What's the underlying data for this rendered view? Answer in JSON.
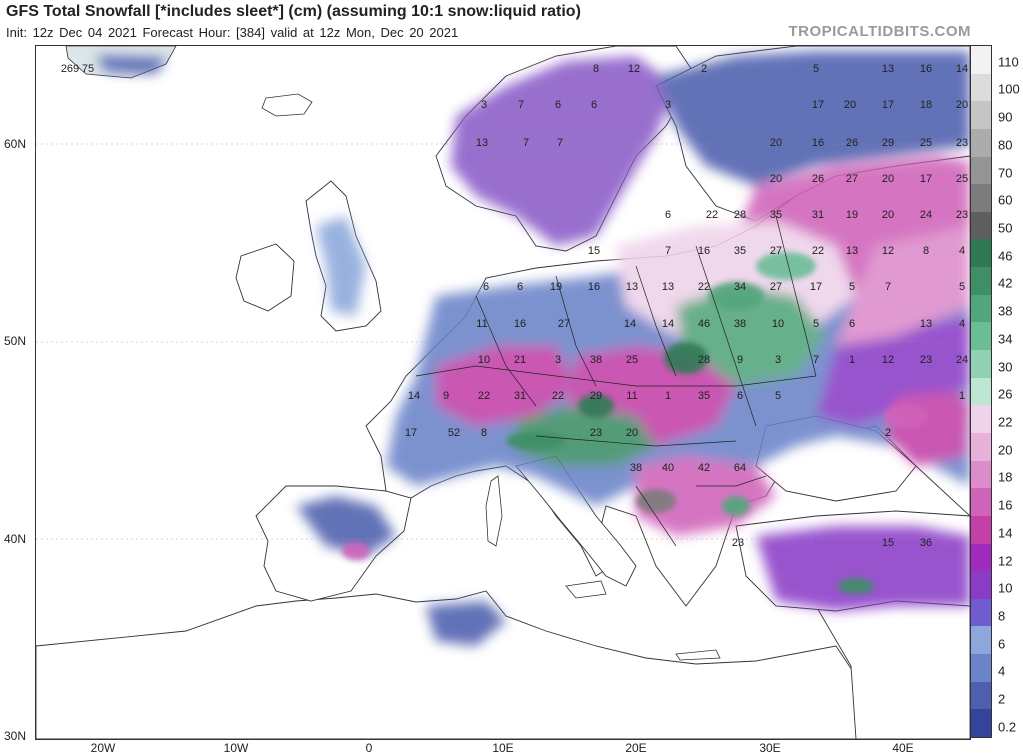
{
  "header": {
    "title": "GFS Total Snowfall [*includes sleet*] (cm) (assuming 10:1 snow:liquid ratio)",
    "subtitle": "Init: 12z Dec 04 2021   Forecast Hour: [384]   valid at 12z Mon, Dec 20 2021",
    "brand": "TROPICALTIDBITS.COM"
  },
  "axes": {
    "lat_labels": [
      "60N",
      "50N",
      "40N",
      "30N"
    ],
    "lon_labels": [
      "20W",
      "10W",
      "0",
      "10E",
      "20E",
      "30E",
      "40E"
    ]
  },
  "legend": {
    "levels": [
      "110",
      "100",
      "90",
      "80",
      "70",
      "60",
      "50",
      "46",
      "42",
      "38",
      "34",
      "30",
      "26",
      "22",
      "20",
      "18",
      "16",
      "14",
      "12",
      "10",
      "8",
      "6",
      "4",
      "2",
      "0.2"
    ],
    "colors": [
      "#f2f2f2",
      "#dcdcdc",
      "#c5c5c5",
      "#acacac",
      "#949494",
      "#7c7c7c",
      "#5f5f5f",
      "#2f7a55",
      "#3e8f66",
      "#52a67d",
      "#6bbd96",
      "#8fd1b2",
      "#bde6d3",
      "#efd3ea",
      "#e7b1dc",
      "#dd8ccb",
      "#d064ba",
      "#c340a8",
      "#a12bbd",
      "#8a3cc7",
      "#6f5dcf",
      "#8ba7db",
      "#6a83c9",
      "#4e5fae",
      "#33449a"
    ]
  },
  "map": {
    "land_color": "#ffffff",
    "sea_color": "#ffffff",
    "values": [
      {
        "text": "269"
      },
      {
        "text": "75"
      },
      {
        "text": "8"
      },
      {
        "text": "12"
      },
      {
        "text": "2"
      },
      {
        "text": "5"
      },
      {
        "text": "13"
      },
      {
        "text": "16"
      },
      {
        "text": "14"
      },
      {
        "text": "3"
      },
      {
        "text": "7"
      },
      {
        "text": "6"
      },
      {
        "text": "6"
      },
      {
        "text": "3"
      },
      {
        "text": "17"
      },
      {
        "text": "20"
      },
      {
        "text": "17"
      },
      {
        "text": "18"
      },
      {
        "text": "20"
      },
      {
        "text": "13"
      },
      {
        "text": "7"
      },
      {
        "text": "7"
      },
      {
        "text": "20"
      },
      {
        "text": "16"
      },
      {
        "text": "26"
      },
      {
        "text": "29"
      },
      {
        "text": "25"
      },
      {
        "text": "23"
      },
      {
        "text": "20"
      },
      {
        "text": "26"
      },
      {
        "text": "27"
      },
      {
        "text": "20"
      },
      {
        "text": "17"
      },
      {
        "text": "25"
      },
      {
        "text": "6"
      },
      {
        "text": "22"
      },
      {
        "text": "28"
      },
      {
        "text": "35"
      },
      {
        "text": "31"
      },
      {
        "text": "19"
      },
      {
        "text": "20"
      },
      {
        "text": "24"
      },
      {
        "text": "23"
      },
      {
        "text": "15"
      },
      {
        "text": "7"
      },
      {
        "text": "16"
      },
      {
        "text": "35"
      },
      {
        "text": "27"
      },
      {
        "text": "22"
      },
      {
        "text": "13"
      },
      {
        "text": "12"
      },
      {
        "text": "8"
      },
      {
        "text": "4"
      },
      {
        "text": "6"
      },
      {
        "text": "6"
      },
      {
        "text": "19"
      },
      {
        "text": "16"
      },
      {
        "text": "13"
      },
      {
        "text": "13"
      },
      {
        "text": "22"
      },
      {
        "text": "34"
      },
      {
        "text": "27"
      },
      {
        "text": "17"
      },
      {
        "text": "5"
      },
      {
        "text": "7"
      },
      {
        "text": "5"
      },
      {
        "text": "11"
      },
      {
        "text": "16"
      },
      {
        "text": "27"
      },
      {
        "text": "14"
      },
      {
        "text": "14"
      },
      {
        "text": "46"
      },
      {
        "text": "38"
      },
      {
        "text": "10"
      },
      {
        "text": "5"
      },
      {
        "text": "6"
      },
      {
        "text": "13"
      },
      {
        "text": "4"
      },
      {
        "text": "10"
      },
      {
        "text": "21"
      },
      {
        "text": "3"
      },
      {
        "text": "38"
      },
      {
        "text": "25"
      },
      {
        "text": "28"
      },
      {
        "text": "9"
      },
      {
        "text": "3"
      },
      {
        "text": "7"
      },
      {
        "text": "1"
      },
      {
        "text": "12"
      },
      {
        "text": "23"
      },
      {
        "text": "24"
      },
      {
        "text": "14"
      },
      {
        "text": "9"
      },
      {
        "text": "22"
      },
      {
        "text": "31"
      },
      {
        "text": "22"
      },
      {
        "text": "29"
      },
      {
        "text": "11"
      },
      {
        "text": "1"
      },
      {
        "text": "35"
      },
      {
        "text": "6"
      },
      {
        "text": "5"
      },
      {
        "text": "1"
      },
      {
        "text": "17"
      },
      {
        "text": "52"
      },
      {
        "text": "8"
      },
      {
        "text": "23"
      },
      {
        "text": "20"
      },
      {
        "text": "2"
      },
      {
        "text": "38"
      },
      {
        "text": "40"
      },
      {
        "text": "42"
      },
      {
        "text": "64"
      },
      {
        "text": "23"
      },
      {
        "text": "15"
      },
      {
        "text": "36"
      }
    ]
  }
}
